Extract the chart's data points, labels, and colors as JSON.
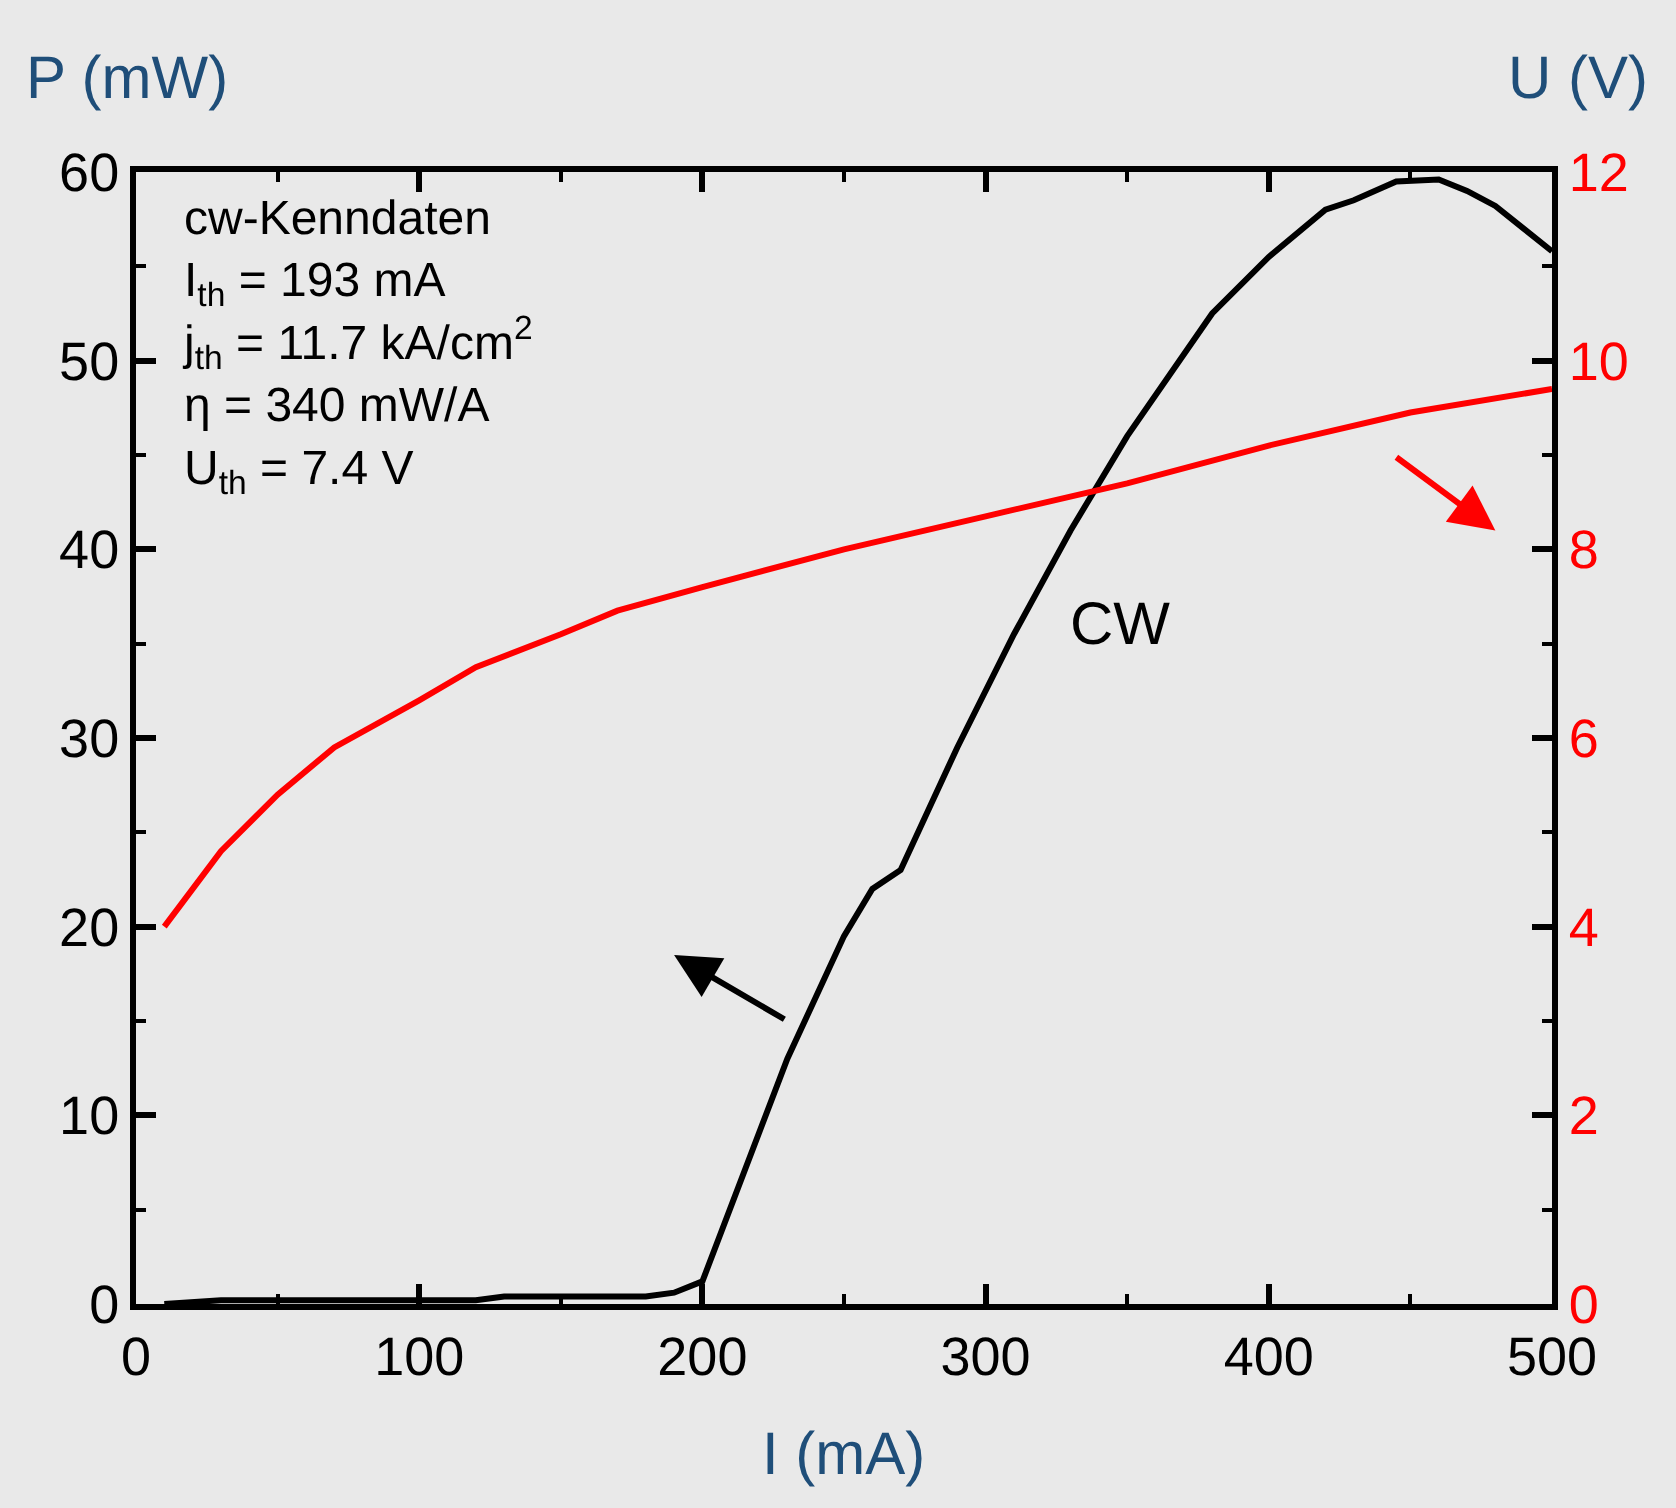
{
  "chart_data": {
    "type": "line",
    "xlabel": "I (mA)",
    "ylabel": "P (mW)",
    "y2label": "U (V)",
    "xlim": [
      0,
      500
    ],
    "xticks": [
      0,
      100,
      200,
      300,
      400,
      500
    ],
    "ylim": [
      0,
      60
    ],
    "yticks": [
      0,
      10,
      20,
      30,
      40,
      50,
      60
    ],
    "y2lim": [
      0,
      12
    ],
    "y2ticks": [
      0,
      2,
      4,
      6,
      8,
      10,
      12
    ],
    "grid": false,
    "marker": "none",
    "line_style": "solid",
    "series": [
      {
        "color": "#000000",
        "x": [
          10,
          30,
          120,
          130,
          180,
          190,
          200,
          230,
          250,
          260,
          270,
          290,
          310,
          330,
          350,
          380,
          400,
          420,
          430,
          445,
          460,
          470,
          480,
          490,
          500
        ],
        "values": [
          0,
          0.2,
          0.2,
          0.4,
          0.4,
          0.6,
          1.2,
          13,
          19.5,
          22,
          23,
          29.5,
          35.5,
          41,
          46,
          52.5,
          55.5,
          58,
          58.5,
          59.5,
          59.6,
          59,
          58.2,
          57,
          55.8
        ]
      },
      {
        "color": "#ff0000",
        "axis": "y2",
        "x": [
          10,
          30,
          50,
          70,
          100,
          120,
          150,
          170,
          200,
          250,
          300,
          350,
          400,
          450,
          500
        ],
        "values": [
          4.0,
          4.8,
          5.4,
          5.9,
          6.4,
          6.75,
          7.1,
          7.35,
          7.6,
          8.0,
          8.35,
          8.7,
          9.1,
          9.45,
          9.7
        ]
      }
    ],
    "annotations": [
      "cw-Kenndaten",
      "I$_{th}$ = 193 mA",
      "j$_{th}$ = 11.7 kA/cm$^{2}$",
      "η = 340 mW/A",
      "U$_{th}$ = 7.4 V",
      "CW"
    ]
  }
}
